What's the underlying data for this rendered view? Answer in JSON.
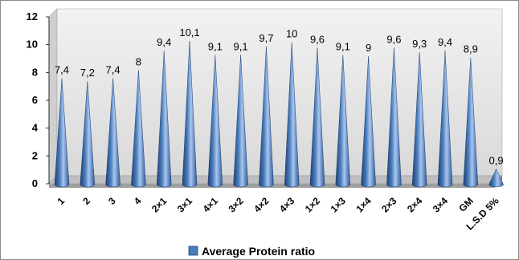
{
  "chart_data": {
    "type": "bar",
    "bar_shape": "cone",
    "categories": [
      "1",
      "2",
      "3",
      "4",
      "2×1",
      "3×1",
      "4×1",
      "3×2",
      "4×2",
      "4×3",
      "1×2",
      "1×3",
      "1×4",
      "2×3",
      "2×4",
      "3×4",
      "GM",
      "L.S.D 5%"
    ],
    "series": [
      {
        "name": "Average Protein ratio",
        "values": [
          7.4,
          7.2,
          7.4,
          8,
          9.4,
          10.1,
          9.1,
          9.1,
          9.7,
          10,
          9.6,
          9.1,
          9,
          9.6,
          9.3,
          9.4,
          8.9,
          0.9
        ],
        "labels": [
          "7,4",
          "7,2",
          "7,4",
          "8",
          "9,4",
          "10,1",
          "9,1",
          "9,1",
          "9,7",
          "10",
          "9,6",
          "9,1",
          "9",
          "9,6",
          "9,3",
          "9,4",
          "8,9",
          "0,9"
        ],
        "color": "#4a7ebb"
      }
    ],
    "yticks": [
      "0",
      "2",
      "4",
      "6",
      "8",
      "10",
      "12"
    ],
    "ylim": [
      0,
      12
    ],
    "grid": false,
    "legend_position": "bottom",
    "colors": {
      "bar": "#4a7ebb",
      "bar_dark": "#1f3f73",
      "bar_light": "#a9c6ef",
      "wall": "#e8e8e8",
      "floor": "#bfbfbf"
    }
  }
}
